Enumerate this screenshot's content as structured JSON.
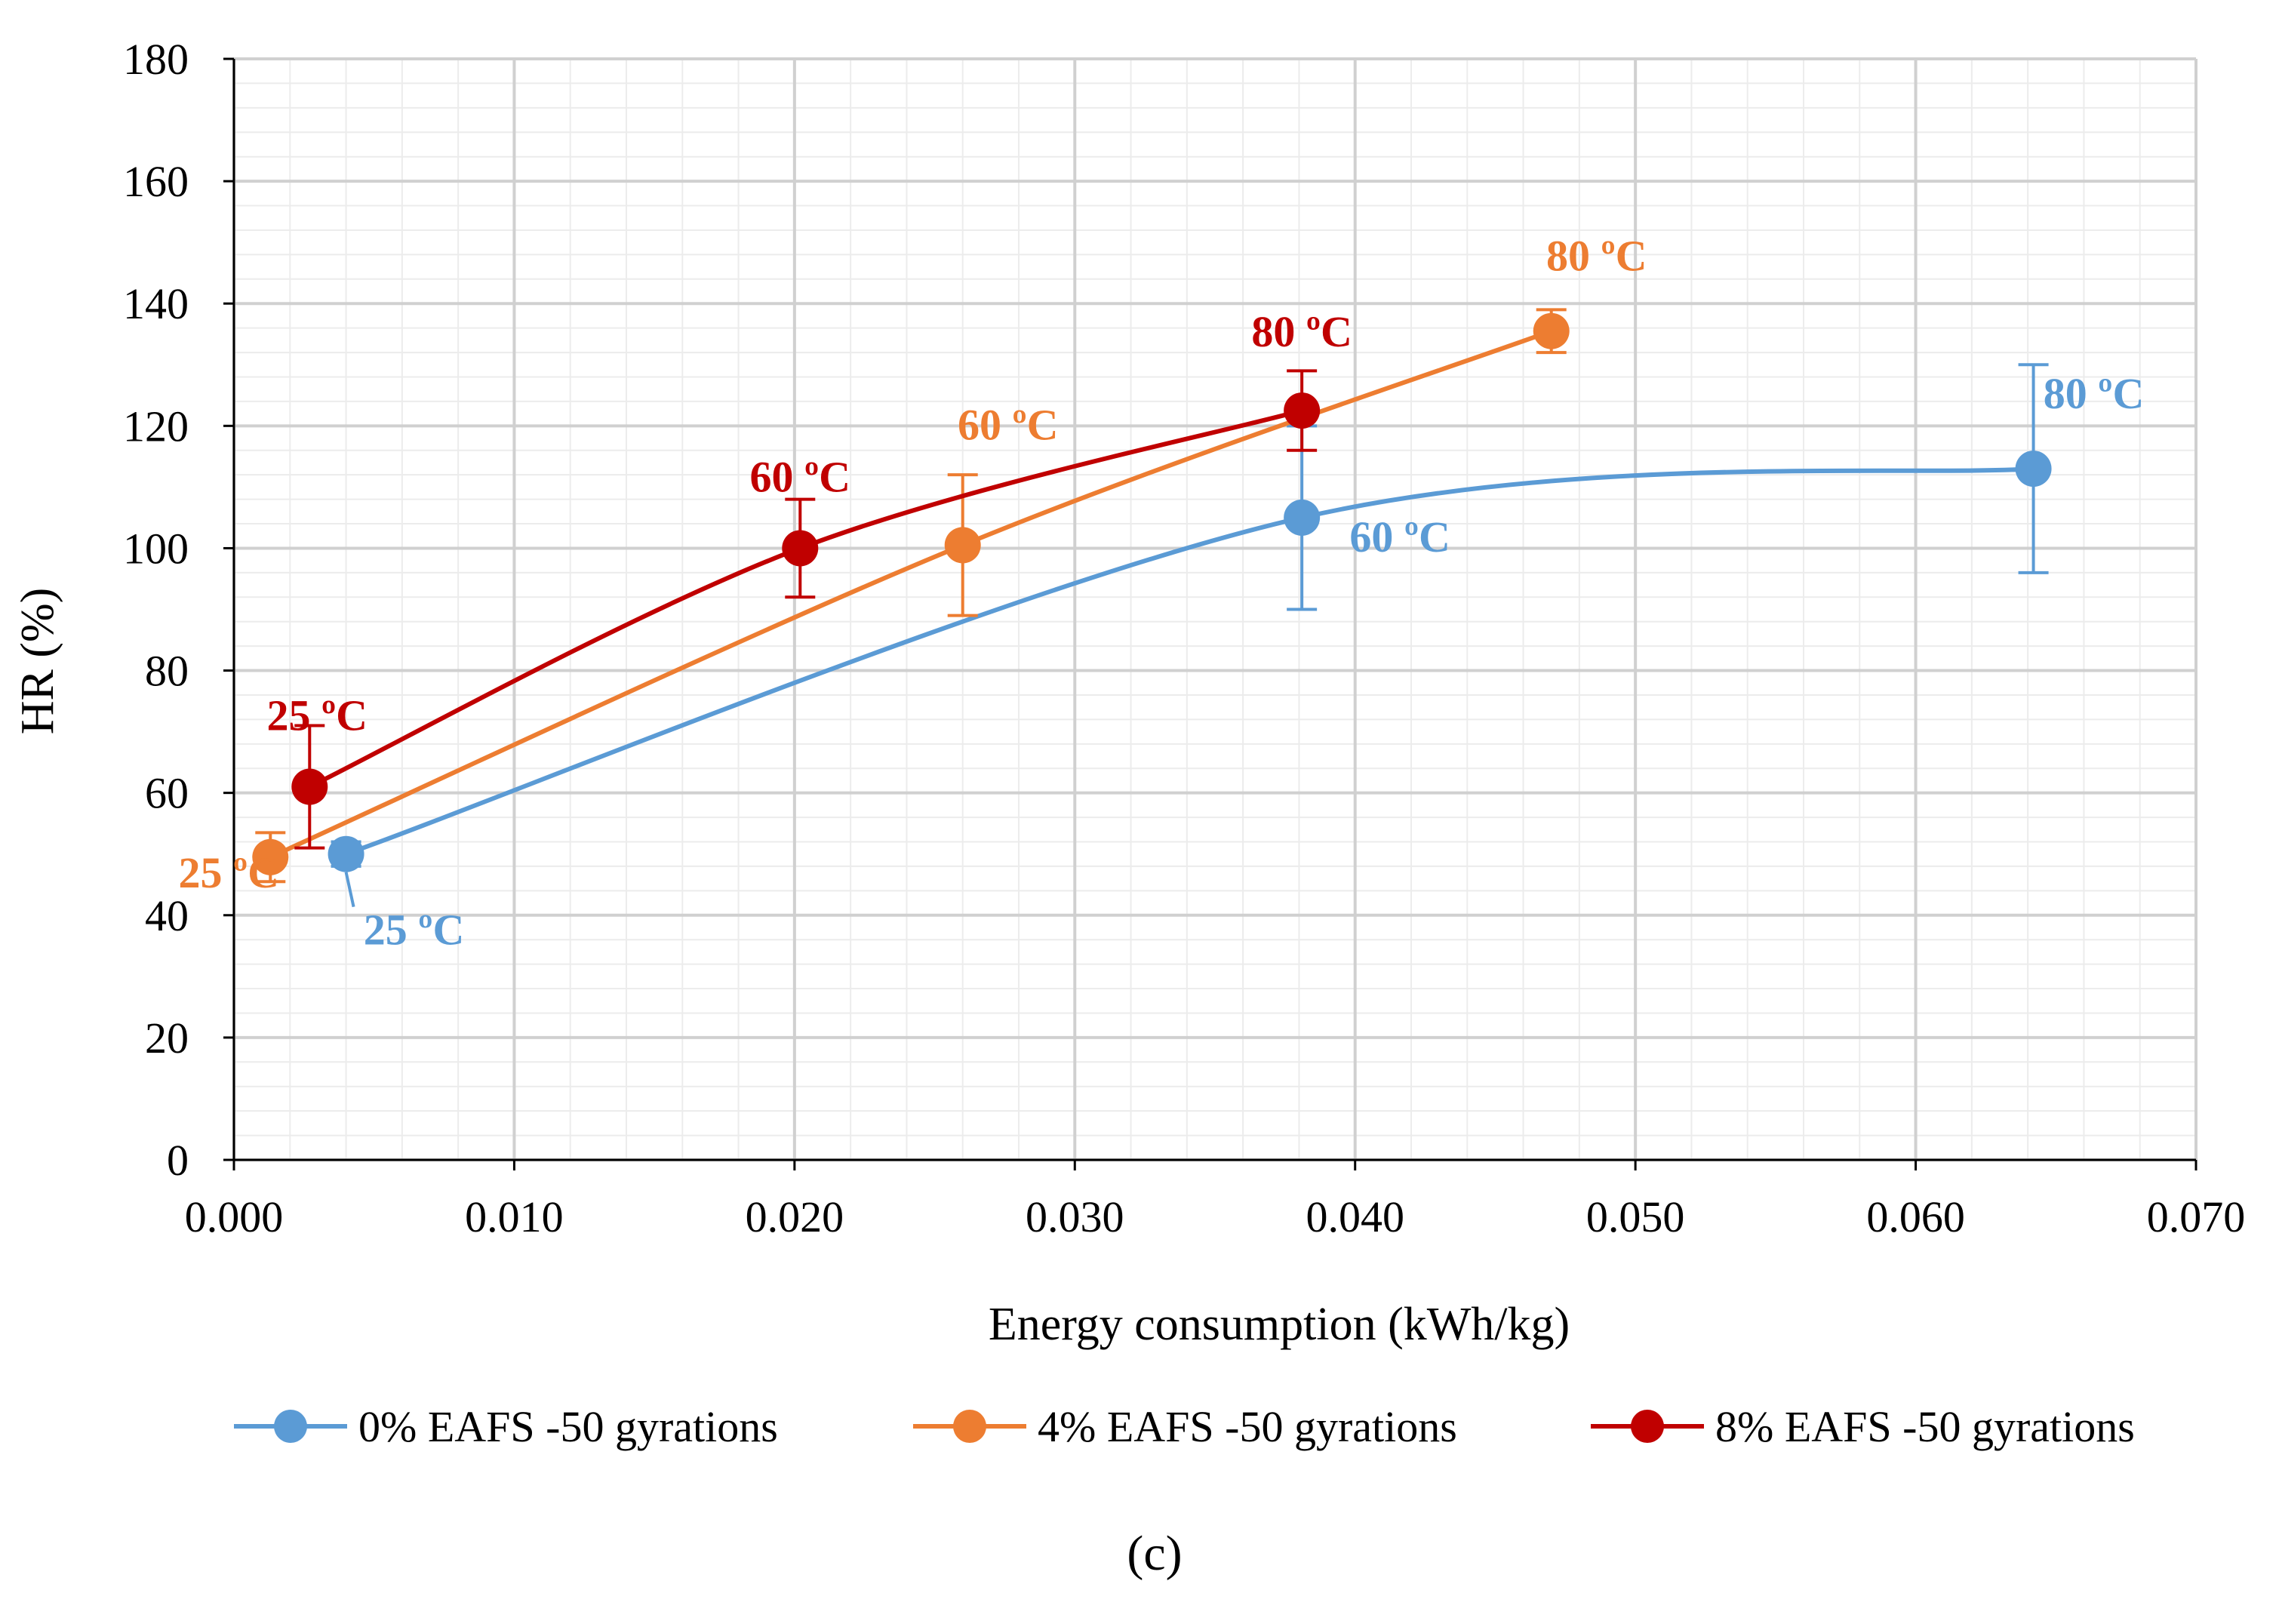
{
  "chart_data": {
    "type": "line",
    "title": "",
    "xlabel": "Energy consumption (kWh/kg)",
    "ylabel": "HR (%)",
    "xlim": [
      0.0,
      0.07
    ],
    "ylim": [
      0,
      180
    ],
    "x_ticks": [
      0.0,
      0.01,
      0.02,
      0.03,
      0.04,
      0.05,
      0.06,
      0.07
    ],
    "x_tick_labels": [
      "0.000",
      "0.010",
      "0.020",
      "0.030",
      "0.040",
      "0.050",
      "0.060",
      "0.070"
    ],
    "y_ticks": [
      0,
      20,
      40,
      60,
      80,
      100,
      120,
      140,
      160,
      180
    ],
    "y_tick_labels": [
      "0",
      "20",
      "40",
      "60",
      "80",
      "100",
      "120",
      "140",
      "160",
      "180"
    ],
    "grid": true,
    "legend_position": "bottom",
    "caption": "(c)",
    "series": [
      {
        "name": "0% EAFS -50 gyrations",
        "color": "#5b9bd5",
        "points": [
          {
            "x": 0.004,
            "y": 50,
            "err": 2,
            "label": "25 ºC"
          },
          {
            "x": 0.0381,
            "y": 105,
            "err": 15,
            "label": "60 ºC"
          },
          {
            "x": 0.0642,
            "y": 113,
            "err": 17,
            "label": "80 ºC"
          }
        ]
      },
      {
        "name": "4% EAFS -50 gyrations",
        "color": "#ed7d31",
        "points": [
          {
            "x": 0.0013,
            "y": 49.5,
            "err": 4,
            "label": "25 ºC"
          },
          {
            "x": 0.026,
            "y": 100.5,
            "err": 11.5,
            "label": "60 ºC"
          },
          {
            "x": 0.047,
            "y": 135.5,
            "err": 3.5,
            "label": "80 ºC"
          }
        ]
      },
      {
        "name": "8% EAFS -50 gyrations",
        "color": "#c00000",
        "points": [
          {
            "x": 0.0027,
            "y": 61,
            "err": 10,
            "label": "25 ºC"
          },
          {
            "x": 0.0202,
            "y": 100,
            "err": 8,
            "label": "60 ºC"
          },
          {
            "x": 0.0381,
            "y": 122.5,
            "err": 6.5,
            "label": "80 ºC"
          }
        ]
      }
    ]
  }
}
